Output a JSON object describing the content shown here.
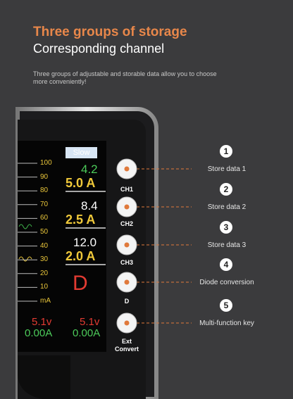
{
  "header": {
    "title": "Three groups of storage",
    "subtitle": "Corresponding channel",
    "description": "Three groups of adjustable and storable data allow you to choose more conveniently!"
  },
  "screen": {
    "mode": "Slow",
    "scale": [
      "100",
      "90",
      "80",
      "70",
      "60",
      "50",
      "40",
      "30",
      "20",
      "10",
      "mA"
    ],
    "channels": [
      {
        "voltage": "4.2",
        "current": "5.0 A"
      },
      {
        "voltage": "8.4",
        "current": "2.5 A"
      },
      {
        "voltage": "12.0",
        "current": "2.0 A"
      }
    ],
    "diode": "D",
    "readouts": [
      {
        "voltage": "5.1v",
        "current": "0.00A"
      },
      {
        "voltage": "5.1v",
        "current": "0.00A"
      }
    ]
  },
  "buttons": [
    "CH1",
    "CH2",
    "CH3",
    "D",
    "Ext Convert"
  ],
  "callouts": [
    {
      "number": "1",
      "label": "Store data 1"
    },
    {
      "number": "2",
      "label": "Store data 2"
    },
    {
      "number": "3",
      "label": "Store data 3"
    },
    {
      "number": "4",
      "label": "Diode conversion"
    },
    {
      "number": "5",
      "label": "Multi-function key"
    }
  ]
}
